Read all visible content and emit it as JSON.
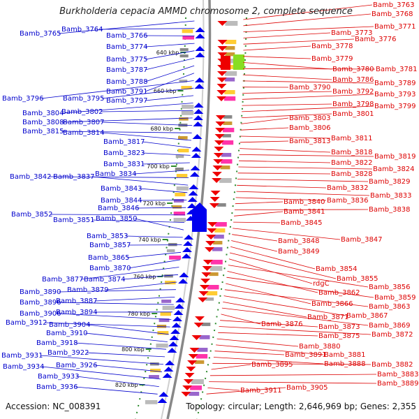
{
  "title": "Burkholderia cepacia AMMD chromosome 2, complete sequence",
  "footer": {
    "accession": "Accession: NC_008391",
    "summary": "Topology: circular; Length: 2,646,969 bp; Genes: 2,355"
  },
  "colors": {
    "left_labels": "#0000cc",
    "right_labels": "#dd0000",
    "backbone": "#888888",
    "tick": "#2e8b2e"
  },
  "kbp_ticks": [
    "640 kbp",
    "660 kbp",
    "680 kbp",
    "700 kbp",
    "720 kbp",
    "740 kbp",
    "760 kbp",
    "780 kbp",
    "800 kbp",
    "820 kbp"
  ],
  "left_labels": [
    "Bamb_3765",
    "Bamb_3764",
    "Bamb_3766",
    "Bamb_3774",
    "Bamb_3775",
    "Bamb_3787",
    "Bamb_3788",
    "Bamb_3791",
    "Bamb_3796",
    "Bamb_3795",
    "Bamb_3797",
    "Bamb_3804",
    "Bamb_3802",
    "Bamb_3808",
    "Bamb_3807",
    "Bamb_3815",
    "Bamb_3814",
    "Bamb_3817",
    "Bamb_3823",
    "Bamb_3831",
    "Bamb_3834",
    "Bamb_3842",
    "Bamb_3837",
    "Bamb_3843",
    "Bamb_3844",
    "Bamb_3846",
    "Bamb_3852",
    "Bamb_3851",
    "Bamb_3850",
    "Bamb_3853",
    "Bamb_3857",
    "Bamb_3865",
    "Bamb_3870",
    "Bamb_3877",
    "Bamb_3874",
    "Bamb_3879",
    "Bamb_3890",
    "Bamb_3887",
    "Bamb_3896",
    "Bamb_3894",
    "Bamb_3906",
    "Bamb_3912",
    "Bamb_3904",
    "Bamb_3910",
    "Bamb_3918",
    "Bamb_3922",
    "Bamb_3931",
    "Bamb_3926",
    "Bamb_3934",
    "Bamb_3933",
    "Bamb_3936"
  ],
  "right_labels": [
    "Bamb_3763",
    "Bamb_3768",
    "Bamb_3771",
    "Bamb_3773",
    "Bamb_3776",
    "Bamb_3778",
    "Bamb_3779",
    "Bamb_3780",
    "Bamb_3781",
    "Bamb_3786",
    "Bamb_3789",
    "Bamb_3790",
    "Bamb_3792",
    "Bamb_3793",
    "Bamb_3798",
    "Bamb_3799",
    "Bamb_3801",
    "Bamb_3803",
    "Bamb_3806",
    "Bamb_3811",
    "Bamb_3813",
    "Bamb_3818",
    "Bamb_3819",
    "Bamb_3822",
    "Bamb_3824",
    "Bamb_3828",
    "Bamb_3829",
    "Bamb_3832",
    "Bamb_3833",
    "Bamb_3836",
    "Bamb_3840",
    "Bamb_3838",
    "Bamb_3841",
    "Bamb_3845",
    "Bamb_3847",
    "Bamb_3848",
    "Bamb_3849",
    "Bamb_3854",
    "Bamb_3855",
    "rdgC",
    "Bamb_3856",
    "Bamb_3862",
    "Bamb_3859",
    "Bamb_3866",
    "Bamb_3863",
    "Bamb_3867",
    "Bamb_3871",
    "Bamb_3869",
    "Bamb_3876",
    "Bamb_3873",
    "Bamb_3872",
    "Bamb_3875",
    "Bamb_3880",
    "Bamb_3881",
    "Bamb_3891",
    "Bamb_3888",
    "Bamb_3882",
    "Bamb_3895",
    "Bamb_3883",
    "Bamb_3889",
    "Bamb_3911",
    "Bamb_3905"
  ]
}
